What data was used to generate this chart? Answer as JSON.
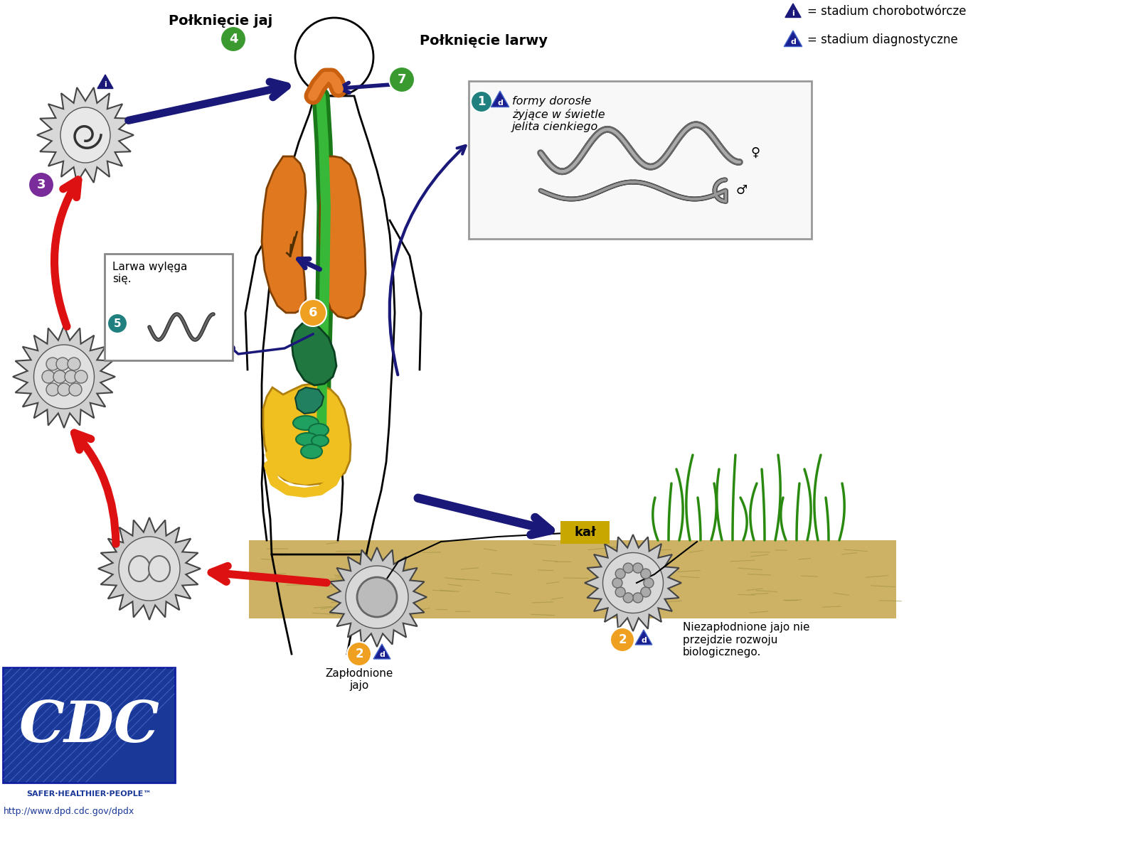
{
  "bg_color": "#ffffff",
  "title": "Połknięcie jaj",
  "title2": "Połknięcie larwy",
  "legend1_text": "= stadium chorobotwórcze",
  "legend2_text": "= stadium diagnostyczne",
  "stage1_text": "formy dorosłe\nżyjące w świetle\njelita cienkiego",
  "stage2a_text": "Zapłodnione\njajo",
  "stage2b_text": "Niezapłodnione jajo nie\nprzejdzie rozwoju\nbiologicznego.",
  "stage5_text": "Larwa wylęga\nsię.",
  "kal_label": "kał",
  "url": "http://www.dpd.cdc.gov/dpdx",
  "safer_text": "SAFER·HEALTHIER·PEOPLE™",
  "green_circle": "#3a9a30",
  "purple_circle": "#7a2d9a",
  "teal_circle": "#208080",
  "orange_circle": "#f0a020",
  "arrow_blue": "#1a1878",
  "arrow_red": "#dd1111",
  "tri_i_color": "#1a1878",
  "tri_d_color": "#1a2090",
  "kal_bg": "#c8a800",
  "soil_color": "#c8aa55",
  "lung_color": "#e07820",
  "stomach_color": "#207840",
  "intestine_color": "#f0c030",
  "sm_intestine_color": "#30a850",
  "trachea_color": "#30a030",
  "body_color": "#000000"
}
